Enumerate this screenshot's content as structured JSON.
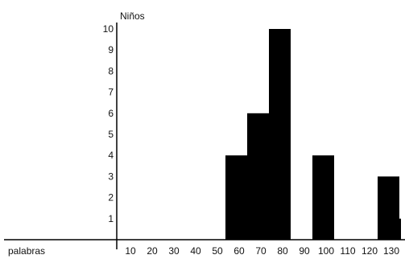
{
  "chart_data": {
    "type": "bar",
    "title": "",
    "xlabel": "palabras",
    "ylabel": "Niños",
    "x_ticks": [
      "10",
      "20",
      "30",
      "40",
      "50",
      "60",
      "70",
      "80",
      "90",
      "100",
      "110",
      "120",
      "130"
    ],
    "y_ticks": [
      "1",
      "2",
      "3",
      "4",
      "5",
      "6",
      "7",
      "8",
      "9",
      "10"
    ],
    "bins": [
      {
        "from": 50,
        "to": 60,
        "value": 4
      },
      {
        "from": 60,
        "to": 70,
        "value": 6
      },
      {
        "from": 70,
        "to": 80,
        "value": 10
      },
      {
        "from": 90,
        "to": 100,
        "value": 4
      },
      {
        "from": 120,
        "to": 130,
        "value": 3
      },
      {
        "from": 130,
        "to": 140,
        "value": 1
      }
    ],
    "xlim": [
      0,
      140
    ],
    "ylim": [
      0,
      10
    ],
    "grid": false,
    "bar_color": "#000000"
  }
}
